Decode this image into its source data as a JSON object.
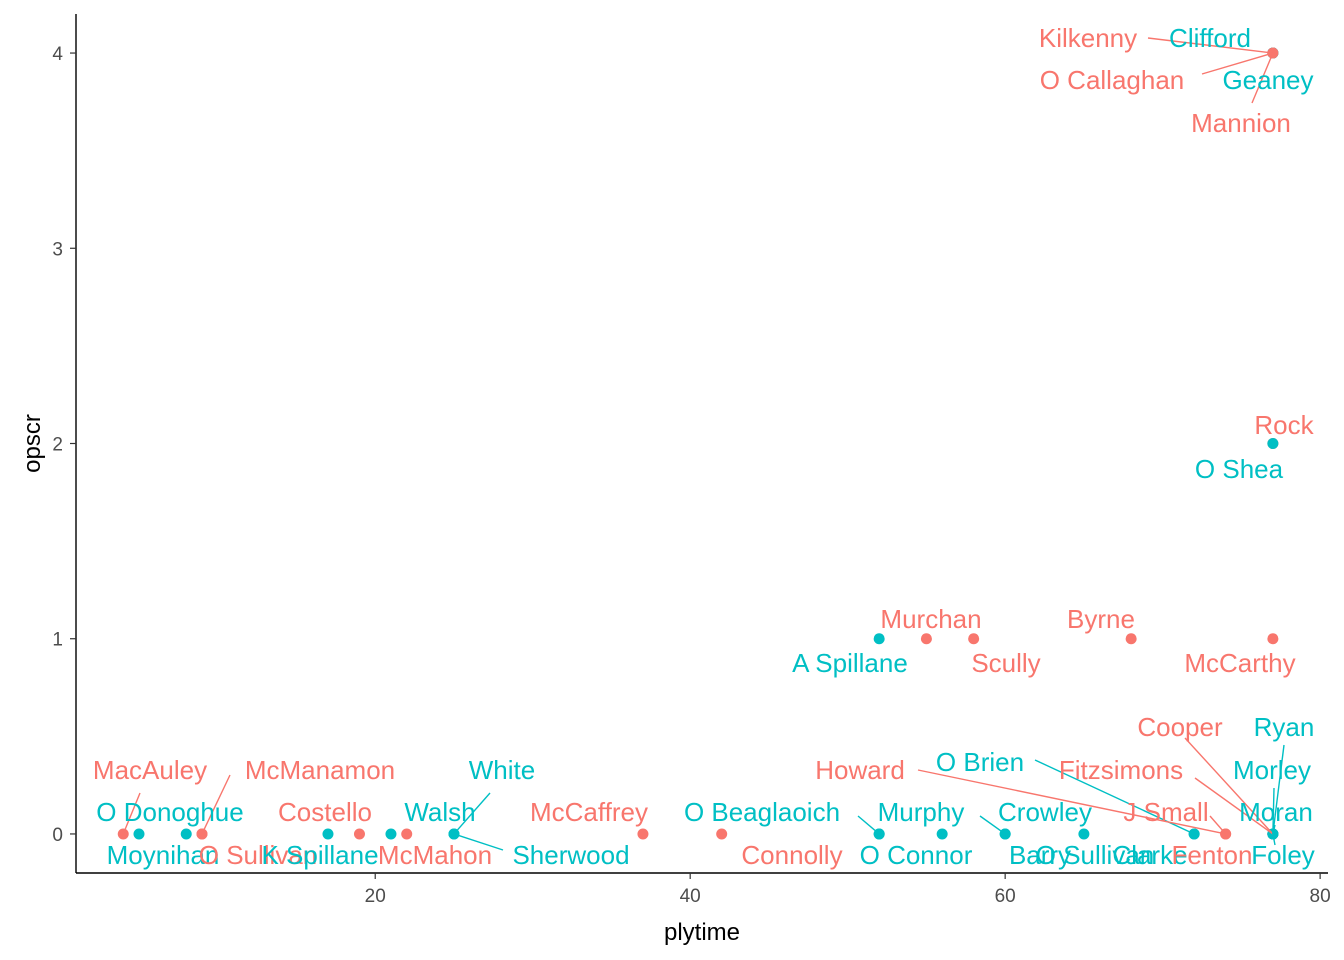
{
  "chart_data": {
    "type": "scatter",
    "title": "",
    "xlabel": "plytime",
    "ylabel": "opscr",
    "xlim": [
      1,
      80.5
    ],
    "ylim": [
      -0.2,
      4.2
    ],
    "x_ticks": [
      20,
      40,
      60,
      80
    ],
    "y_ticks": [
      0,
      1,
      2,
      3,
      4
    ],
    "grid": false,
    "legend": "none",
    "colors": {
      "group_a": "#F8766D",
      "group_b": "#00BFC4"
    },
    "points": [
      {
        "name": "Kilkenny",
        "x": 77,
        "y": 4,
        "group": "a"
      },
      {
        "name": "Clifford",
        "x": 77,
        "y": 4,
        "group": "b"
      },
      {
        "name": "O Callaghan",
        "x": 77,
        "y": 4,
        "group": "a"
      },
      {
        "name": "Geaney",
        "x": 77,
        "y": 4,
        "group": "b"
      },
      {
        "name": "Mannion",
        "x": 77,
        "y": 4,
        "group": "a"
      },
      {
        "name": "Rock",
        "x": 77,
        "y": 2,
        "group": "a"
      },
      {
        "name": "O Shea",
        "x": 77,
        "y": 2,
        "group": "b"
      },
      {
        "name": "A Spillane",
        "x": 52,
        "y": 1,
        "group": "b"
      },
      {
        "name": "Murchan",
        "x": 55,
        "y": 1,
        "group": "a"
      },
      {
        "name": "Scully",
        "x": 58,
        "y": 1,
        "group": "a"
      },
      {
        "name": "Byrne",
        "x": 68,
        "y": 1,
        "group": "a"
      },
      {
        "name": "McCarthy",
        "x": 77,
        "y": 1,
        "group": "a"
      },
      {
        "name": "MacAuley",
        "x": 4,
        "y": 0,
        "group": "a"
      },
      {
        "name": "O Donoghue",
        "x": 5,
        "y": 0,
        "group": "b"
      },
      {
        "name": "Moynihan",
        "x": 8,
        "y": 0,
        "group": "b"
      },
      {
        "name": "McManamon",
        "x": 9,
        "y": 0,
        "group": "a"
      },
      {
        "name": "O Sullivan",
        "x": 9,
        "y": 0,
        "group": "a"
      },
      {
        "name": "K Spillane",
        "x": 17,
        "y": 0,
        "group": "b"
      },
      {
        "name": "Costello",
        "x": 19,
        "y": 0,
        "group": "a"
      },
      {
        "name": "Walsh",
        "x": 21,
        "y": 0,
        "group": "b"
      },
      {
        "name": "McMahon",
        "x": 22,
        "y": 0,
        "group": "a"
      },
      {
        "name": "White",
        "x": 25,
        "y": 0,
        "group": "b"
      },
      {
        "name": "Sherwood",
        "x": 25,
        "y": 0,
        "group": "b"
      },
      {
        "name": "McCaffrey",
        "x": 37,
        "y": 0,
        "group": "a"
      },
      {
        "name": "Connolly",
        "x": 42,
        "y": 0,
        "group": "a"
      },
      {
        "name": "O Beaglaoich",
        "x": 52,
        "y": 0,
        "group": "b"
      },
      {
        "name": "O Connor",
        "x": 52,
        "y": 0,
        "group": "b"
      },
      {
        "name": "Murphy",
        "x": 56,
        "y": 0,
        "group": "b"
      },
      {
        "name": "Crowley",
        "x": 60,
        "y": 0,
        "group": "b"
      },
      {
        "name": "Barry",
        "x": 60,
        "y": 0,
        "group": "b"
      },
      {
        "name": "O Sullivan",
        "x": 65,
        "y": 0,
        "group": "b"
      },
      {
        "name": "O Brien",
        "x": 72,
        "y": 0,
        "group": "b"
      },
      {
        "name": "Clarke",
        "x": 72,
        "y": 0,
        "group": "b"
      },
      {
        "name": "J Small",
        "x": 74,
        "y": 0,
        "group": "a"
      },
      {
        "name": "Howard",
        "x": 74,
        "y": 0,
        "group": "a"
      },
      {
        "name": "Fitzsimons",
        "x": 77,
        "y": 0,
        "group": "a"
      },
      {
        "name": "Fenton",
        "x": 77,
        "y": 0,
        "group": "a"
      },
      {
        "name": "Cooper",
        "x": 77,
        "y": 0,
        "group": "a"
      },
      {
        "name": "Ryan",
        "x": 77,
        "y": 0,
        "group": "b"
      },
      {
        "name": "Morley",
        "x": 77,
        "y": 0,
        "group": "b"
      },
      {
        "name": "Moran",
        "x": 77,
        "y": 0,
        "group": "b"
      },
      {
        "name": "Foley",
        "x": 77,
        "y": 0,
        "group": "b"
      }
    ]
  }
}
